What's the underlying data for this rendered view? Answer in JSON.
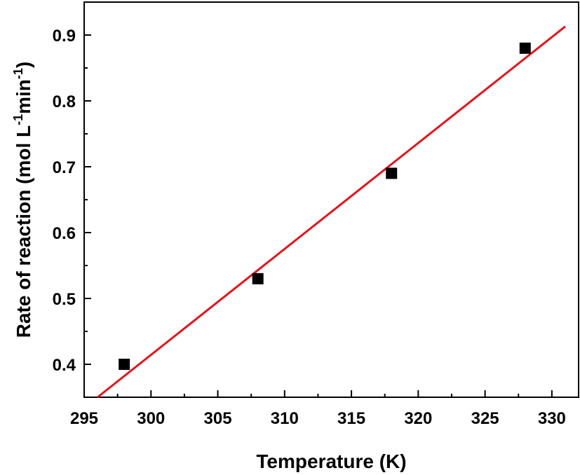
{
  "chart_data": {
    "type": "scatter",
    "title": "",
    "xlabel": "Temperature (K)",
    "ylabel_parts": {
      "main": "Rate of reaction (mol L",
      "sup1": "-1",
      "mid": "min",
      "sup2": "-1",
      "end": ")"
    },
    "xlim": [
      295,
      332
    ],
    "ylim": [
      0.35,
      0.95
    ],
    "xticks": [
      295,
      300,
      305,
      310,
      315,
      320,
      325,
      330
    ],
    "xtick_labels": [
      "295",
      "300",
      "305",
      "310",
      "315",
      "320",
      "325",
      "330"
    ],
    "yticks": [
      0.4,
      0.5,
      0.6,
      0.7,
      0.8,
      0.9
    ],
    "ytick_labels": [
      "0.4",
      "0.5",
      "0.6",
      "0.7",
      "0.8",
      "0.9"
    ],
    "grid": false,
    "series": [
      {
        "kind": "scatter",
        "marker": "square",
        "color": "#000000",
        "x": [
          298,
          308,
          318,
          328
        ],
        "y": [
          0.4,
          0.53,
          0.69,
          0.88
        ]
      },
      {
        "kind": "fit-line",
        "color": "#e3141c",
        "x": [
          296,
          331
        ],
        "y": [
          0.35,
          0.913
        ]
      }
    ]
  }
}
